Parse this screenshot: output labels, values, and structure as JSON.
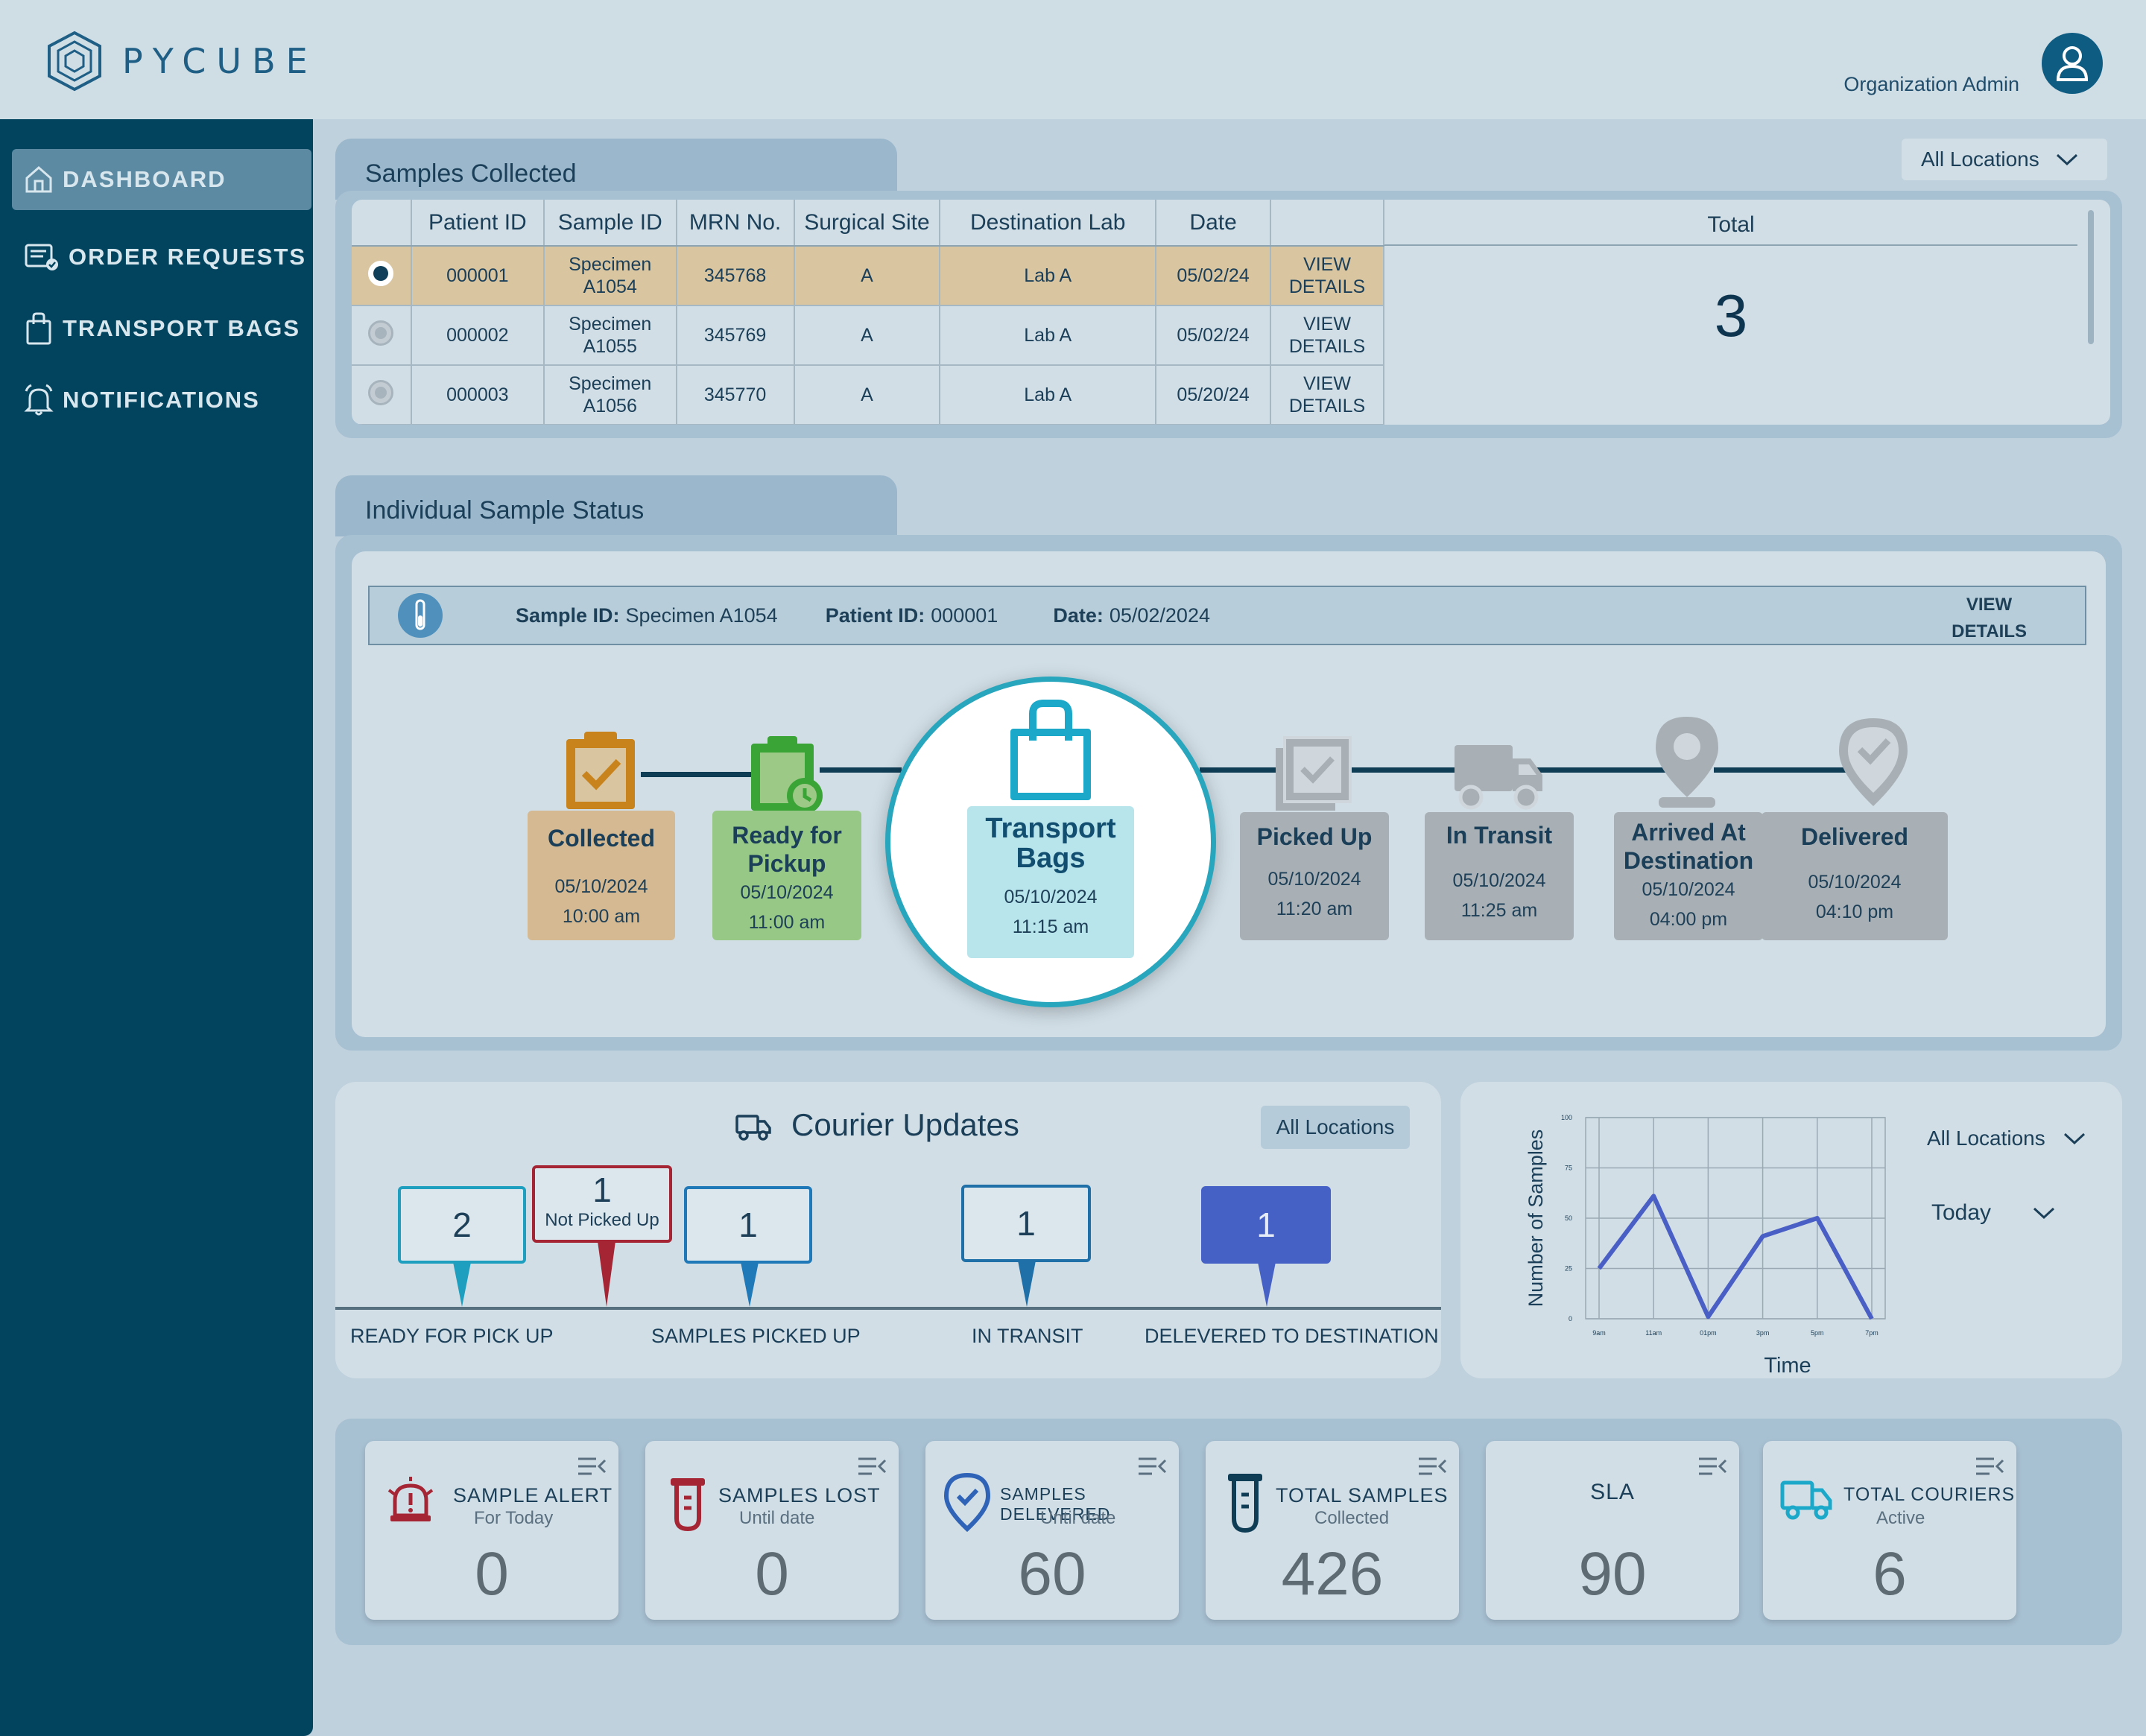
{
  "header": {
    "logo_text": "PYCUBE",
    "user_label": "Organization Admin"
  },
  "sidebar": {
    "items": [
      {
        "label": "DASHBOARD"
      },
      {
        "label": "ORDER REQUESTS"
      },
      {
        "label": "TRANSPORT BAGS"
      },
      {
        "label": "NOTIFICATIONS"
      }
    ]
  },
  "samples": {
    "title": "Samples Collected",
    "location_filter": "All Locations",
    "columns": [
      "Patient ID",
      "Sample ID",
      "MRN No.",
      "Surgical Site",
      "Destination Lab",
      "Date"
    ],
    "rows": [
      {
        "patient_id": "000001",
        "sample_id_1": "Specimen",
        "sample_id_2": "A1054",
        "mrn": "345768",
        "site": "A",
        "lab": "Lab A",
        "date": "05/02/24",
        "action_1": "VIEW",
        "action_2": "DETAILS"
      },
      {
        "patient_id": "000002",
        "sample_id_1": "Specimen",
        "sample_id_2": "A1055",
        "mrn": "345769",
        "site": "A",
        "lab": "Lab A",
        "date": "05/02/24",
        "action_1": "VIEW",
        "action_2": "DETAILS"
      },
      {
        "patient_id": "000003",
        "sample_id_1": "Specimen",
        "sample_id_2": "A1056",
        "mrn": "345770",
        "site": "A",
        "lab": "Lab A",
        "date": "05/20/24",
        "action_1": "VIEW",
        "action_2": "DETAILS"
      }
    ],
    "total_label": "Total",
    "total_value": "3"
  },
  "status": {
    "title": "Individual Sample Status",
    "sample_id_label": "Sample ID:",
    "sample_id": "Specimen A1054",
    "patient_id_label": "Patient ID:",
    "patient_id": "000001",
    "date_label": "Date:",
    "date": "05/02/2024",
    "view_1": "VIEW",
    "view_2": "DETAILS",
    "steps": [
      {
        "label_1": "Collected",
        "label_2": "",
        "date": "05/10/2024",
        "time": "10:00 am"
      },
      {
        "label_1": "Ready for",
        "label_2": "Pickup",
        "date": "05/10/2024",
        "time": "11:00 am"
      },
      {
        "label_1": "Transport",
        "label_2": "Bags",
        "date": "05/10/2024",
        "time": "11:15 am"
      },
      {
        "label_1": "Picked Up",
        "label_2": "",
        "date": "05/10/2024",
        "time": "11:20 am"
      },
      {
        "label_1": "In Transit",
        "label_2": "",
        "date": "05/10/2024",
        "time": "11:25 am"
      },
      {
        "label_1": "Arrived At",
        "label_2": "Destination",
        "date": "05/10/2024",
        "time": "04:00 pm"
      },
      {
        "label_1": "Delivered",
        "label_2": "",
        "date": "05/10/2024",
        "time": "04:10 pm"
      }
    ]
  },
  "courier": {
    "title": "Courier Updates",
    "location_filter": "All Locations",
    "ready_value": "2",
    "not_picked_value": "1",
    "not_picked_label": "Not Picked Up",
    "picked_value": "1",
    "transit_value": "1",
    "delivered_value": "1",
    "labels": {
      "ready": "READY FOR PICK UP",
      "picked": "SAMPLES PICKED UP",
      "transit": "IN TRANSIT",
      "delivered": "DELEVERED TO DESTINATION"
    },
    "colors": {
      "ready": "#1f9fbf",
      "not_picked": "#a52535",
      "picked": "#1f78b8",
      "transit": "#1f6fa8",
      "delivered": "#4561c6"
    }
  },
  "chart_filters": {
    "location": "All Locations",
    "period": "Today"
  },
  "chart_data": {
    "type": "line",
    "x": [
      "9am",
      "11am",
      "01pm",
      "3pm",
      "5pm",
      "7pm"
    ],
    "series": [
      {
        "values": [
          25,
          61,
          1,
          41,
          50,
          0
        ]
      }
    ],
    "ylabel": "Number of Samples",
    "xlabel": "Time",
    "y_ticks": [
      "0",
      "25",
      "50",
      "75",
      "100"
    ],
    "ylim": [
      0,
      100
    ],
    "grid": true,
    "color": "#4a5fc6"
  },
  "stats": [
    {
      "title": "SAMPLE ALERT",
      "subtitle": "For Today",
      "value": "0"
    },
    {
      "title": "SAMPLES LOST",
      "subtitle": "Until date",
      "value": "0"
    },
    {
      "title": "SAMPLES DELEVERED",
      "subtitle": "Until date",
      "value": "60"
    },
    {
      "title": "TOTAL SAMPLES",
      "subtitle": "Collected",
      "value": "426"
    },
    {
      "title": "SLA",
      "subtitle": "",
      "value": "90"
    },
    {
      "title": "TOTAL COURIERS",
      "subtitle": "Active",
      "value": "6"
    }
  ]
}
